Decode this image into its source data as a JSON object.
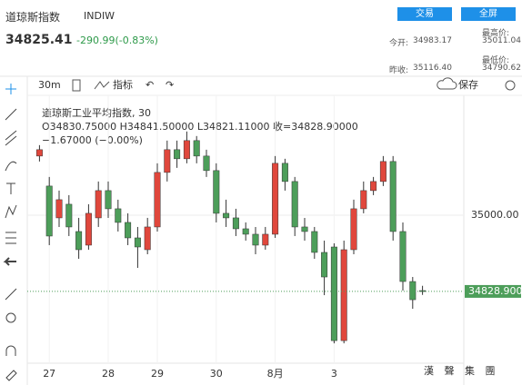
{
  "header": {
    "name": "道琼斯指数",
    "code": "INDIW",
    "buttons": [
      "交易",
      "全屏"
    ],
    "price": "34825.41",
    "change": "-290.99(-0.83%)",
    "stats": [
      {
        "label": "今开:",
        "value": "34983.17"
      },
      {
        "label": "最高价:",
        "value": "35011.04"
      },
      {
        "label": "昨收:",
        "value": "35116.40"
      },
      {
        "label": "最低价:",
        "value": "34790.62"
      }
    ]
  },
  "toolbar": {
    "interval": "30m",
    "indicators": "指标",
    "save": "保存"
  },
  "watermark": "漢 聲 集 團",
  "chart_data": {
    "type": "candlestick",
    "legend_title": "道琼斯工业平均指数, 30",
    "legend_ohlc": "O34830.75000 H34841.50000 L34821.11000 收=34828.90000",
    "legend_change": "−1.67000 (−0.00%)",
    "categories": [
      null,
      "27",
      null,
      null,
      null,
      null,
      null,
      "28",
      null,
      null,
      null,
      null,
      "29",
      null,
      null,
      null,
      null,
      null,
      "30",
      null,
      null,
      null,
      null,
      null,
      "8月",
      null,
      null,
      null,
      null,
      null,
      "3",
      null,
      null,
      null,
      null,
      null,
      null,
      null,
      null,
      null
    ],
    "open": [
      35132.6,
      35065.3,
      34993.9,
      35024.5,
      34963.3,
      34932.7,
      34993.9,
      35055.1,
      35014.3,
      34983.7,
      34949.0,
      34922.5,
      34973.5,
      35095.9,
      35146.9,
      35126.5,
      35167.3,
      35132.6,
      35100.0,
      35004.1,
      34993.9,
      34969.4,
      34957.2,
      34932.7,
      34957.2,
      35116.3,
      35075.5,
      34973.5,
      34963.3,
      34916.4,
      34928.6,
      34718.5,
      34922.5,
      35014.3,
      35055.1,
      35075.5,
      35120.4,
      34963.3,
      34851.1,
      34830.75
    ],
    "high": [
      35157.1,
      35085.7,
      35055.1,
      35044.9,
      34993.9,
      35024.5,
      35075.5,
      35075.5,
      35034.7,
      35004.1,
      34973.5,
      34993.9,
      35116.3,
      35167.3,
      35167.3,
      35187.7,
      35177.5,
      35146.9,
      35116.3,
      35034.7,
      35014.3,
      34983.7,
      34973.5,
      34973.5,
      35132.6,
      35126.5,
      35085.7,
      34993.9,
      34973.5,
      34942.9,
      34936.8,
      34942.9,
      35034.7,
      35075.5,
      35085.7,
      35132.6,
      35132.6,
      34983.7,
      34861.3,
      34841.5
    ],
    "low": [
      35120.4,
      34932.7,
      34973.5,
      34953.1,
      34902.1,
      34922.5,
      34973.5,
      34993.9,
      34963.3,
      34932.7,
      34881.7,
      34912.3,
      34963.3,
      35075.5,
      35106.1,
      35116.3,
      35116.3,
      35085.7,
      34983.7,
      34973.5,
      34953.1,
      34942.9,
      34912.3,
      34922.5,
      34949.0,
      35055.1,
      34953.1,
      34942.9,
      34902.1,
      34820.5,
      34712.4,
      34712.4,
      34912.3,
      35004.1,
      35044.9,
      35065.3,
      34942.9,
      34830.7,
      34789.9,
      34821.11
    ],
    "close": [
      35146.9,
      34953.1,
      35034.7,
      34973.5,
      34922.5,
      35004.1,
      35055.1,
      35014.3,
      34983.7,
      34949.0,
      34928.6,
      34973.5,
      35095.9,
      35146.9,
      35126.5,
      35167.3,
      35132.6,
      35100.0,
      35004.1,
      34993.9,
      34969.4,
      34957.2,
      34932.7,
      34957.2,
      35116.3,
      35075.5,
      34973.5,
      34963.3,
      34916.4,
      34861.3,
      34718.5,
      34922.5,
      35014.3,
      35055.1,
      35075.5,
      35120.4,
      34963.3,
      34851.1,
      34810.3,
      34828.9
    ],
    "up_color": "#e0473c",
    "down_color": "#4d9e5a",
    "ylim": [
      34678,
      35279
    ],
    "yticks": [
      {
        "value": 35000,
        "label": "35000.00"
      }
    ],
    "last_price": {
      "value": 34828.9,
      "label": "34828.90000"
    },
    "grid": true
  }
}
